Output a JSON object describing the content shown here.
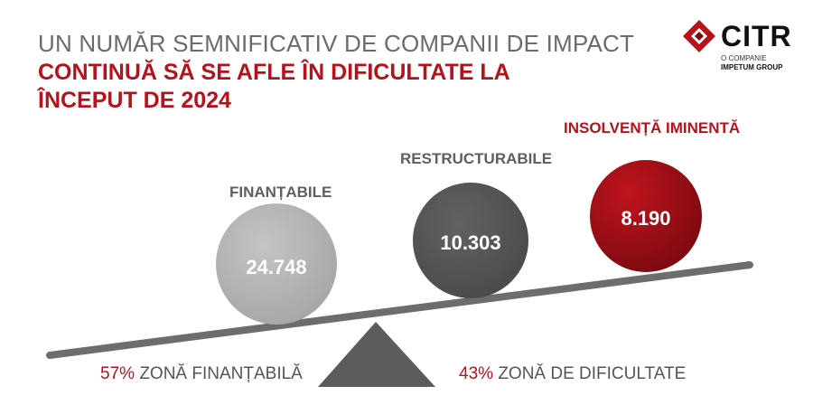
{
  "title": {
    "line1": "UN NUMĂR SEMNIFICATIV DE COMPANII DE IMPACT",
    "line2": "CONTINUĂ SĂ SE AFLE ÎN DIFICULTATE LA",
    "line3": "ÎNCEPUT DE 2024"
  },
  "logo": {
    "word": "CITR",
    "sub1": "O COMPANIE",
    "sub2": "IMPETUM GROUP"
  },
  "categories": [
    {
      "label": "FINANȚABILE",
      "value": "24.748",
      "color": "#b3b3b3"
    },
    {
      "label": "RESTRUCTURABILE",
      "value": "10.303",
      "color": "#5a5a5a"
    },
    {
      "label": "INSOLVENȚĂ IMINENTĂ",
      "value": "8.190",
      "color": "#a8101a"
    }
  ],
  "bottom": {
    "left_pct": "57%",
    "left_text": "ZONĂ FINANȚABILĂ",
    "right_pct": "43%",
    "right_text": "ZONĂ DE DIFICULTATE"
  },
  "colors": {
    "accent": "#b5121b",
    "grey_text": "#6b6b6b",
    "beam": "#6d6d6d"
  }
}
